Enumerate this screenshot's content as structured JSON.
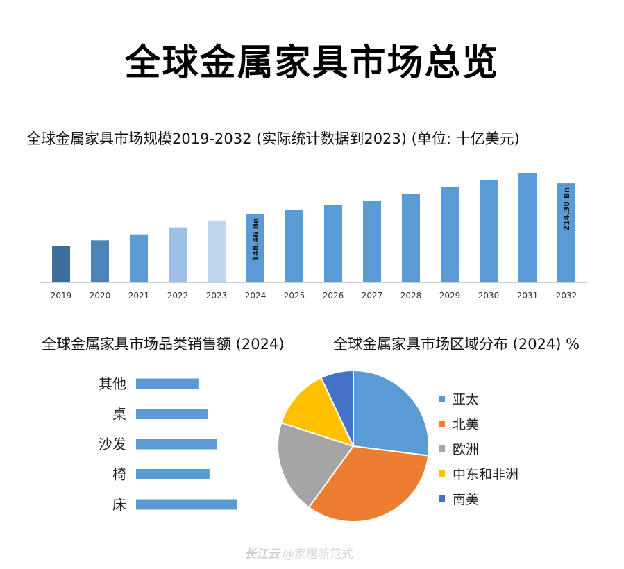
{
  "title": "全球金属家具市场总览",
  "charts_text": {
    "bar_title": "全球金属家具市场规模2019-2032 (实际统计数据到2023) (单位: 十亿美元)",
    "hbar_title": "全球金属家具市场品类销售额 (2024)",
    "pie_title": "全球金属家具市场区域分布 (2024) %"
  },
  "watermark": {
    "logo": "长江云",
    "handle": "@家居新范式"
  },
  "chart_data": [
    {
      "type": "bar",
      "categories": [
        "2019",
        "2020",
        "2021",
        "2022",
        "2023",
        "2024",
        "2025",
        "2026",
        "2027",
        "2028",
        "2029",
        "2030",
        "2031",
        "2032"
      ],
      "values": [
        79,
        91,
        104,
        119,
        134,
        148.46,
        157,
        168,
        176,
        191,
        207,
        222,
        236,
        214.38
      ],
      "colors": [
        "#3a6e9c",
        "#4a84b8",
        "#5b9bd5",
        "#9dc0e6",
        "#c0d6ee",
        "#5b9bd5",
        "#5b9bd5",
        "#5b9bd5",
        "#5b9bd5",
        "#5b9bd5",
        "#5b9bd5",
        "#5b9bd5",
        "#5b9bd5",
        "#5b9bd5"
      ],
      "data_labels": [
        {
          "category": "2024",
          "text": "148.46 Bn"
        },
        {
          "category": "2032",
          "text": "214.38 Bn"
        }
      ],
      "ylim": [
        0,
        240
      ],
      "grid": false
    },
    {
      "type": "bar",
      "orientation": "horizontal",
      "categories": [
        "其他",
        "桌",
        "沙发",
        "椅",
        "床"
      ],
      "values": [
        0.62,
        0.71,
        0.8,
        0.73,
        1.0
      ],
      "color": "#5b9bd5",
      "grid": false
    },
    {
      "type": "pie",
      "labels": [
        "亚太",
        "北美",
        "欧洲",
        "中东和非洲",
        "南美"
      ],
      "values": [
        27,
        33,
        20,
        13,
        7
      ],
      "colors": [
        "#5b9bd5",
        "#ed7d31",
        "#a5a5a5",
        "#ffc000",
        "#4472c4"
      ],
      "legend": "right"
    }
  ]
}
